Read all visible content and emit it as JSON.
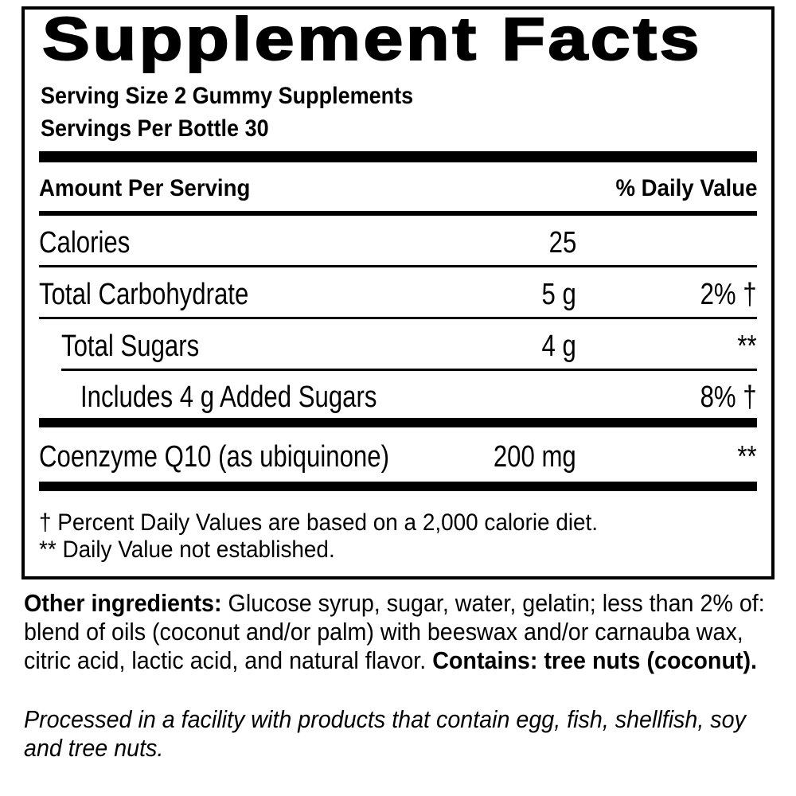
{
  "title": "Supplement Facts",
  "serving_size": "Serving Size 2 Gummy Supplements",
  "servings_per": "Servings Per Bottle 30",
  "header": {
    "amount": "Amount Per Serving",
    "dv": "% Daily Value"
  },
  "rows": [
    {
      "name": "Calories",
      "amount": "25",
      "dv": ""
    },
    {
      "name": "Total Carbohydrate",
      "amount": "5 g",
      "dv": "2% †"
    },
    {
      "name": "Total Sugars",
      "amount": "4 g",
      "dv": "**"
    },
    {
      "name": "Includes 4 g Added Sugars",
      "amount": "",
      "dv": "8% †"
    },
    {
      "name": "Coenzyme Q10 (as ubiquinone)",
      "amount": "200 mg",
      "dv": "**"
    }
  ],
  "footnotes": [
    "† Percent Daily Values are based on a 2,000 calorie diet.",
    "** Daily Value not established."
  ],
  "other": {
    "label": "Other ingredients:",
    "text": " Glucose syrup, sugar, water, gelatin; less than 2% of: blend of oils (coconut and/or palm) with beeswax and/or carnauba wax, citric acid, lactic acid, and natural flavor. ",
    "contains": "Contains: tree nuts (coconut)."
  },
  "facility": "Processed in a facility with products that contain egg, fish, shellfish, soy and tree nuts."
}
